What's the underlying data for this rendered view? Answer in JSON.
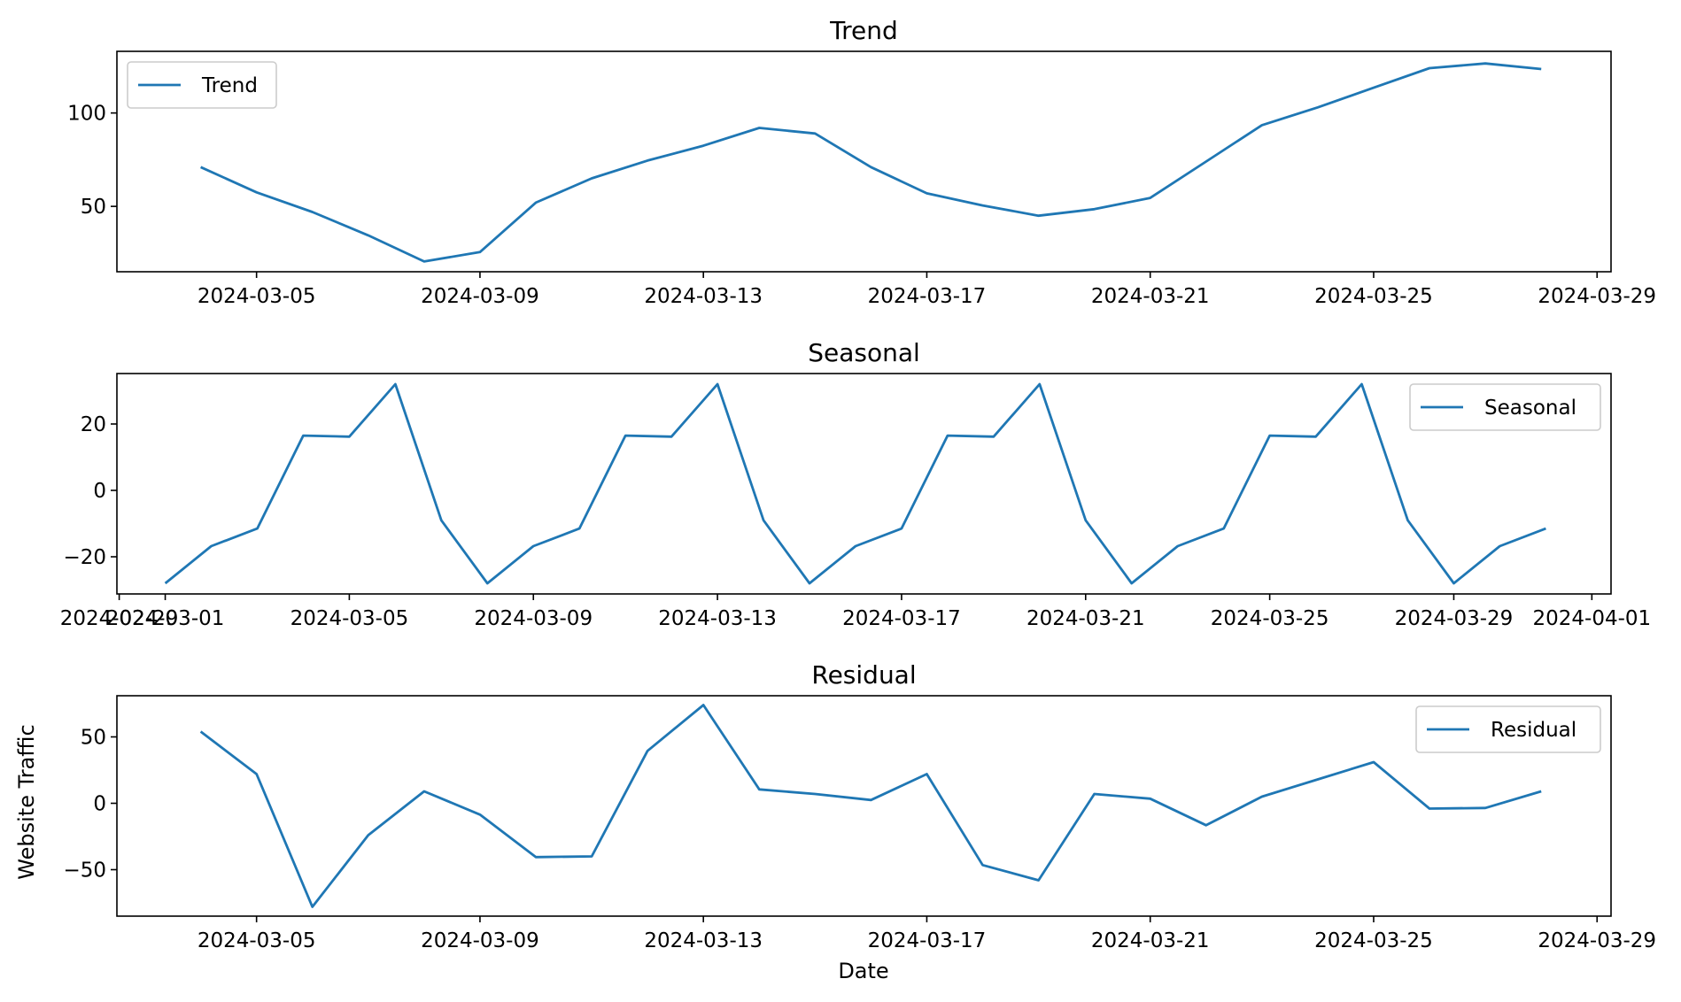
{
  "figure": {
    "xlabel": "Date",
    "ylabel": "Website Traffic",
    "line_color": "#1f77b4"
  },
  "chart_data": [
    {
      "type": "line",
      "title": "Trend",
      "xlabel": "",
      "ylabel": "",
      "x": [
        "2024-03-04",
        "2024-03-05",
        "2024-03-06",
        "2024-03-07",
        "2024-03-08",
        "2024-03-09",
        "2024-03-10",
        "2024-03-11",
        "2024-03-12",
        "2024-03-13",
        "2024-03-14",
        "2024-03-15",
        "2024-03-16",
        "2024-03-17",
        "2024-03-18",
        "2024-03-19",
        "2024-03-20",
        "2024-03-21",
        "2024-03-22",
        "2024-03-23",
        "2024-03-24",
        "2024-03-25",
        "2024-03-26",
        "2024-03-27",
        "2024-03-28"
      ],
      "series": [
        {
          "name": "Trend",
          "values": [
            71.0,
            57.5,
            47.0,
            34.5,
            20.5,
            25.5,
            52.0,
            65.0,
            74.5,
            82.5,
            92.0,
            89.0,
            71.0,
            57.0,
            50.5,
            45.0,
            48.5,
            54.5,
            74.0,
            93.5,
            103.0,
            113.5,
            124.0,
            126.5,
            123.5
          ]
        }
      ],
      "xlim": [
        "2024-03-02T12:00",
        "2024-03-29T06:00"
      ],
      "ylim": [
        15,
        133
      ],
      "yticks": [
        50,
        100
      ],
      "xticks": [
        "2024-03-05",
        "2024-03-09",
        "2024-03-13",
        "2024-03-17",
        "2024-03-21",
        "2024-03-25",
        "2024-03-29"
      ],
      "legend": "upper left",
      "grid": false
    },
    {
      "type": "line",
      "title": "Seasonal",
      "xlabel": "",
      "ylabel": "",
      "x": [
        "2024-03-01",
        "2024-03-02",
        "2024-03-03",
        "2024-03-04",
        "2024-03-05",
        "2024-03-06",
        "2024-03-07",
        "2024-03-08",
        "2024-03-09",
        "2024-03-10",
        "2024-03-11",
        "2024-03-12",
        "2024-03-13",
        "2024-03-14",
        "2024-03-15",
        "2024-03-16",
        "2024-03-17",
        "2024-03-18",
        "2024-03-19",
        "2024-03-20",
        "2024-03-21",
        "2024-03-22",
        "2024-03-23",
        "2024-03-24",
        "2024-03-25",
        "2024-03-26",
        "2024-03-27",
        "2024-03-28",
        "2024-03-29",
        "2024-03-30",
        "2024-03-31"
      ],
      "series": [
        {
          "name": "Seasonal",
          "values": [
            -28.0,
            -16.8,
            -11.5,
            16.5,
            16.2,
            32.0,
            -9.0,
            -28.0,
            -16.8,
            -11.5,
            16.5,
            16.2,
            32.0,
            -9.0,
            -28.0,
            -16.8,
            -11.5,
            16.5,
            16.2,
            32.0,
            -9.0,
            -28.0,
            -16.8,
            -11.5,
            16.5,
            16.2,
            32.0,
            -9.0,
            -28.0,
            -16.8,
            -11.5
          ]
        }
      ],
      "xlim": [
        "2024-02-28T22:48",
        "2024-04-01T10:00"
      ],
      "ylim": [
        -31.2,
        35.2
      ],
      "yticks": [
        -20,
        0,
        20
      ],
      "xticks": [
        "2024-02-29",
        "2024-03-01",
        "2024-03-05",
        "2024-03-09",
        "2024-03-13",
        "2024-03-17",
        "2024-03-21",
        "2024-03-25",
        "2024-03-29",
        "2024-04-01"
      ],
      "legend": "upper right",
      "grid": false
    },
    {
      "type": "line",
      "title": "Residual",
      "xlabel": "Date",
      "ylabel": "Website Traffic",
      "x": [
        "2024-03-04",
        "2024-03-05",
        "2024-03-06",
        "2024-03-07",
        "2024-03-08",
        "2024-03-09",
        "2024-03-10",
        "2024-03-11",
        "2024-03-12",
        "2024-03-13",
        "2024-03-14",
        "2024-03-15",
        "2024-03-16",
        "2024-03-17",
        "2024-03-18",
        "2024-03-19",
        "2024-03-20",
        "2024-03-21",
        "2024-03-22",
        "2024-03-23",
        "2024-03-24",
        "2024-03-25",
        "2024-03-26",
        "2024-03-27",
        "2024-03-28"
      ],
      "series": [
        {
          "name": "Residual",
          "values": [
            54.0,
            22.0,
            -78.0,
            -24.0,
            9.0,
            -8.5,
            -40.5,
            -40.0,
            39.5,
            74.0,
            10.5,
            7.0,
            2.5,
            22.0,
            -46.5,
            -58.0,
            7.0,
            3.5,
            -16.5,
            5.0,
            18.0,
            31.0,
            -4.0,
            -3.5,
            9.0
          ]
        }
      ],
      "xlim": [
        "2024-03-02T12:00",
        "2024-03-29T06:00"
      ],
      "ylim": [
        -85,
        81
      ],
      "yticks": [
        -50,
        0,
        50
      ],
      "xticks": [
        "2024-03-05",
        "2024-03-09",
        "2024-03-13",
        "2024-03-17",
        "2024-03-21",
        "2024-03-25",
        "2024-03-29"
      ],
      "legend": "upper right",
      "grid": false
    }
  ]
}
